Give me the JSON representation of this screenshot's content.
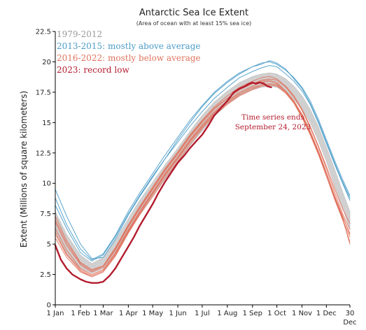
{
  "chart_data": {
    "type": "line",
    "title": "Antarctic Sea Ice Extent",
    "subtitle": "(Area of ocean with at least 15% sea ice)",
    "ylabel": "Extent (Millions of square kilometers)",
    "xlabel": "",
    "ylim": [
      0,
      22.5
    ],
    "xlim": [
      1,
      364
    ],
    "y_ticks": [
      "0",
      "2.5",
      "5",
      "7.5",
      "10",
      "12.5",
      "15",
      "17.5",
      "20",
      "22.5"
    ],
    "x_ticks": [
      {
        "day": 1,
        "label": "1 Jan"
      },
      {
        "day": 32,
        "label": "1 Feb"
      },
      {
        "day": 60,
        "label": "1 Mar"
      },
      {
        "day": 91,
        "label": "1 Apr"
      },
      {
        "day": 121,
        "label": "1 May"
      },
      {
        "day": 152,
        "label": "1 Jun"
      },
      {
        "day": 182,
        "label": "1 Jul"
      },
      {
        "day": 213,
        "label": "1 Aug"
      },
      {
        "day": 244,
        "label": "1 Sep"
      },
      {
        "day": 274,
        "label": "1 Oct"
      },
      {
        "day": 305,
        "label": "1 Nov"
      },
      {
        "day": 335,
        "label": "1 Dec"
      },
      {
        "day": 364,
        "label": "30",
        "label2": "Dec"
      }
    ],
    "grid": false,
    "legend_position": "top-left",
    "legend": [
      {
        "label": "1979-2012",
        "color": "#9a9a9a"
      },
      {
        "label": "2013-2015: mostly above average",
        "color": "#4a9cc8"
      },
      {
        "label": "2016-2022: mostly below average",
        "color": "#e0735e"
      },
      {
        "label": "2023: record low",
        "color": "#b31c2e"
      }
    ],
    "annotation": {
      "lines": [
        "Time series ends",
        "September 24, 2023"
      ],
      "color": "#b31c2e"
    },
    "climatology_envelope": {
      "color": "#c8c8c8",
      "x": [
        1,
        15,
        32,
        46,
        60,
        75,
        91,
        105,
        121,
        136,
        152,
        167,
        182,
        197,
        213,
        228,
        244,
        255,
        265,
        274,
        285,
        295,
        305,
        315,
        325,
        335,
        345,
        355,
        364
      ],
      "y_low": [
        6.0,
        4.2,
        3.0,
        2.6,
        3.0,
        4.3,
        6.0,
        7.4,
        8.9,
        10.3,
        11.7,
        13.1,
        14.3,
        15.5,
        16.5,
        17.2,
        17.7,
        17.9,
        18.0,
        17.9,
        17.5,
        16.9,
        16.1,
        15.0,
        13.5,
        11.8,
        9.8,
        8.0,
        6.2
      ],
      "y_high": [
        7.7,
        5.8,
        4.1,
        3.4,
        3.9,
        5.3,
        7.1,
        8.6,
        10.1,
        11.5,
        12.9,
        14.3,
        15.6,
        16.7,
        17.6,
        18.3,
        18.8,
        19.0,
        19.1,
        19.0,
        18.6,
        18.0,
        17.2,
        16.1,
        14.7,
        13.0,
        11.2,
        9.3,
        7.7
      ]
    },
    "series": [
      {
        "group": "2013-2015",
        "color": "#4a9cc8",
        "x": [
          1,
          15,
          32,
          46,
          60,
          75,
          91,
          105,
          121,
          136,
          152,
          167,
          182,
          197,
          213,
          228,
          244,
          255,
          265,
          274,
          285,
          295,
          305,
          315,
          325,
          335,
          345,
          355,
          364
        ],
        "y": [
          8.2,
          6.3,
          4.3,
          3.6,
          4.1,
          5.6,
          7.5,
          9.0,
          10.6,
          12.0,
          13.4,
          14.7,
          15.9,
          17.0,
          17.9,
          18.7,
          19.2,
          19.5,
          19.7,
          19.6,
          19.0,
          18.4,
          17.6,
          16.5,
          15.0,
          13.3,
          11.6,
          10.0,
          8.6
        ]
      },
      {
        "group": "2013-2015",
        "color": "#4a9cc8",
        "x": [
          1,
          15,
          32,
          46,
          60,
          75,
          91,
          105,
          121,
          136,
          152,
          167,
          182,
          197,
          213,
          228,
          244,
          255,
          265,
          274,
          285,
          295,
          305,
          315,
          325,
          335,
          345,
          355,
          364
        ],
        "y": [
          9.5,
          7.3,
          5.0,
          3.8,
          3.9,
          5.4,
          7.4,
          8.9,
          10.5,
          12.0,
          13.6,
          15.0,
          16.3,
          17.4,
          18.3,
          19.0,
          19.6,
          19.9,
          20.0,
          19.8,
          19.3,
          18.7,
          17.9,
          16.8,
          15.3,
          13.6,
          11.9,
          10.3,
          9.0
        ]
      },
      {
        "group": "2013-2015",
        "color": "#4a9cc8",
        "x": [
          1,
          15,
          32,
          46,
          60,
          75,
          91,
          105,
          121,
          136,
          152,
          167,
          182,
          197,
          213,
          228,
          244,
          255,
          265,
          274,
          285,
          295,
          305,
          315,
          325,
          335,
          345,
          355,
          364
        ],
        "y": [
          8.8,
          6.6,
          4.6,
          3.7,
          4.2,
          5.7,
          7.7,
          9.2,
          10.8,
          12.3,
          13.8,
          15.2,
          16.4,
          17.5,
          18.4,
          19.1,
          19.6,
          19.8,
          20.1,
          19.9,
          19.4,
          18.6,
          17.8,
          16.6,
          15.1,
          13.4,
          11.7,
          10.1,
          8.8
        ]
      },
      {
        "group": "2016-2022",
        "color": "#e0735e",
        "x": [
          1,
          15,
          32,
          46,
          60,
          75,
          91,
          105,
          121,
          136,
          152,
          167,
          182,
          197,
          213,
          228,
          244,
          255,
          265,
          274,
          285,
          295,
          305,
          315,
          325,
          335,
          345,
          355,
          364
        ],
        "y": [
          7.3,
          5.3,
          3.5,
          2.9,
          3.2,
          4.6,
          6.5,
          8.0,
          9.6,
          11.1,
          12.5,
          13.9,
          15.1,
          16.2,
          17.0,
          17.7,
          18.2,
          18.4,
          18.5,
          18.3,
          17.6,
          16.6,
          15.4,
          14.0,
          12.4,
          10.6,
          8.7,
          7.0,
          5.6
        ]
      },
      {
        "group": "2016-2022",
        "color": "#e0735e",
        "x": [
          1,
          15,
          32,
          46,
          60,
          75,
          91,
          105,
          121,
          136,
          152,
          167,
          182,
          197,
          213,
          228,
          244,
          255,
          265,
          274,
          285,
          295,
          305,
          315,
          325,
          335,
          345,
          355,
          364
        ],
        "y": [
          6.0,
          4.2,
          2.9,
          2.4,
          2.8,
          4.2,
          6.1,
          7.6,
          9.2,
          10.7,
          12.1,
          13.5,
          14.7,
          15.8,
          16.7,
          17.4,
          17.9,
          18.1,
          18.2,
          18.1,
          17.5,
          16.7,
          15.6,
          14.2,
          12.5,
          10.6,
          8.8,
          7.0,
          5.2
        ]
      },
      {
        "group": "2016-2022",
        "color": "#e0735e",
        "x": [
          1,
          15,
          32,
          46,
          60,
          75,
          91,
          105,
          121,
          136,
          152,
          167,
          182,
          197,
          213,
          228,
          244,
          255,
          265,
          274,
          285,
          295,
          305,
          315,
          325,
          335,
          345,
          355,
          364
        ],
        "y": [
          5.5,
          3.9,
          2.7,
          2.3,
          2.7,
          4.0,
          5.9,
          7.4,
          8.9,
          10.4,
          11.8,
          13.2,
          14.5,
          15.6,
          16.5,
          17.2,
          17.7,
          18.0,
          18.1,
          18.0,
          17.4,
          16.6,
          15.5,
          14.1,
          12.5,
          10.8,
          9.0,
          7.3,
          5.8
        ]
      },
      {
        "group": "2016-2022",
        "color": "#e0735e",
        "x": [
          1,
          15,
          32,
          46,
          60,
          75,
          91,
          105,
          121,
          136,
          152,
          167,
          182,
          197,
          213,
          228,
          244,
          255,
          265,
          274,
          285,
          295,
          305,
          315,
          325,
          335,
          345,
          355,
          364
        ],
        "y": [
          6.8,
          4.9,
          3.3,
          2.7,
          3.1,
          4.5,
          6.4,
          7.9,
          9.5,
          11.0,
          12.4,
          13.8,
          15.0,
          16.1,
          17.0,
          17.7,
          18.2,
          18.5,
          18.6,
          18.5,
          17.9,
          17.1,
          16.0,
          14.6,
          13.0,
          11.2,
          9.3,
          7.5,
          6.2
        ]
      },
      {
        "group": "2016-2022",
        "color": "#e0735e",
        "x": [
          1,
          15,
          32,
          46,
          60,
          75,
          91,
          105,
          121,
          136,
          152,
          167,
          182,
          197,
          213,
          228,
          244,
          255,
          265,
          274,
          285,
          295,
          305,
          315,
          325,
          335,
          345,
          355,
          364
        ],
        "y": [
          6.3,
          4.5,
          3.0,
          2.5,
          2.9,
          4.3,
          6.2,
          7.7,
          9.3,
          10.8,
          12.2,
          13.6,
          14.8,
          15.9,
          16.8,
          17.5,
          18.0,
          18.3,
          18.4,
          18.2,
          17.6,
          16.8,
          15.7,
          14.3,
          12.7,
          10.9,
          9.0,
          7.2,
          5.9
        ]
      },
      {
        "group": "2016-2022",
        "color": "#e0735e",
        "x": [
          1,
          15,
          32,
          46,
          60,
          75,
          91,
          105,
          121,
          136,
          152,
          167,
          182,
          197,
          213,
          228,
          244,
          255,
          265,
          274,
          285,
          295,
          305,
          315,
          325,
          335,
          345,
          355,
          364
        ],
        "y": [
          7.0,
          5.1,
          3.4,
          2.8,
          3.2,
          4.7,
          6.6,
          8.1,
          9.7,
          11.2,
          12.6,
          14.0,
          15.2,
          16.3,
          17.2,
          17.9,
          18.4,
          18.7,
          18.8,
          18.6,
          18.0,
          17.2,
          16.1,
          14.7,
          13.1,
          11.4,
          9.6,
          7.9,
          6.7
        ]
      },
      {
        "group": "2016-2022",
        "color": "#e0735e",
        "x": [
          1,
          15,
          32,
          46,
          60,
          75,
          91,
          105,
          121,
          136,
          152,
          167,
          182,
          197,
          213,
          228,
          244,
          255,
          265,
          274,
          285,
          295,
          305,
          315,
          325,
          335,
          345,
          355,
          364
        ],
        "y": [
          5.8,
          4.1,
          2.8,
          2.3,
          2.7,
          4.1,
          6.0,
          7.5,
          9.1,
          10.6,
          12.0,
          13.4,
          14.6,
          15.7,
          16.6,
          17.3,
          17.8,
          18.1,
          18.2,
          18.1,
          17.5,
          16.7,
          15.6,
          14.2,
          12.6,
          10.8,
          8.9,
          7.1,
          5.0
        ]
      },
      {
        "group": "2023",
        "color": "#b31c2e",
        "x": [
          1,
          8,
          15,
          22,
          32,
          39,
          46,
          53,
          60,
          68,
          75,
          83,
          91,
          98,
          105,
          113,
          121,
          128,
          136,
          144,
          152,
          160,
          167,
          175,
          182,
          190,
          197,
          205,
          213,
          221,
          228,
          235,
          240,
          244,
          248,
          253,
          258,
          262,
          267
        ],
        "y": [
          4.9,
          3.7,
          3.0,
          2.5,
          2.1,
          1.9,
          1.8,
          1.8,
          1.9,
          2.4,
          3.0,
          3.9,
          4.8,
          5.6,
          6.5,
          7.4,
          8.3,
          9.2,
          10.1,
          10.9,
          11.7,
          12.3,
          12.9,
          13.5,
          14.0,
          14.8,
          15.6,
          16.2,
          16.8,
          17.5,
          17.8,
          18.0,
          18.2,
          18.3,
          18.2,
          18.3,
          18.2,
          18.0,
          17.9
        ]
      }
    ]
  }
}
